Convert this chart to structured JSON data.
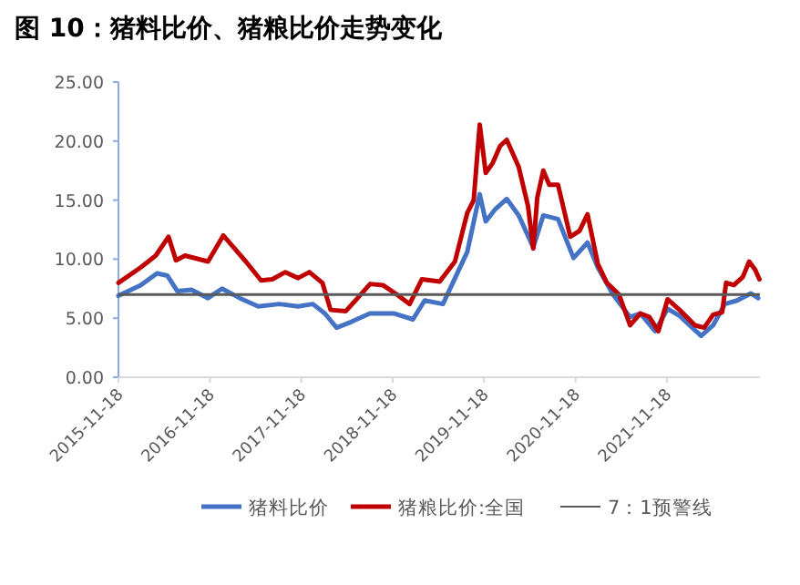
{
  "chart_data": {
    "type": "line",
    "title": "图 10：猪料比价、猪粮比价走势变化",
    "series": [
      {
        "name": "猪料比价",
        "color": "#4472c4",
        "x": [
          "2015-11-18",
          "2016-02-15",
          "2016-04-20",
          "2016-06-01",
          "2016-07-10",
          "2016-09-05",
          "2016-11-10",
          "2017-01-05",
          "2017-03-17",
          "2017-05-30",
          "2017-08-22",
          "2017-11-05",
          "2018-01-03",
          "2018-02-20",
          "2018-04-08",
          "2018-06-07",
          "2018-08-19",
          "2018-11-25",
          "2019-02-07",
          "2019-03-26",
          "2019-06-07",
          "2019-09-12",
          "2019-11-01",
          "2019-11-25",
          "2020-01-01",
          "2020-02-17",
          "2020-04-05",
          "2020-06-02",
          "2020-07-12",
          "2020-09-09",
          "2020-11-10",
          "2021-01-05",
          "2021-02-15",
          "2021-04-17",
          "2021-06-24",
          "2021-08-04",
          "2021-10-02",
          "2021-11-21",
          "2022-01-08",
          "2022-04-04",
          "2022-05-22",
          "2022-07-08",
          "2022-08-26",
          "2022-10-20",
          "2022-11-18"
        ],
        "values": [
          6.9,
          7.8,
          8.8,
          8.6,
          7.3,
          7.4,
          6.7,
          7.5,
          6.7,
          6.0,
          6.2,
          6.0,
          6.2,
          5.4,
          4.2,
          4.7,
          5.4,
          5.4,
          4.9,
          6.5,
          6.2,
          10.6,
          15.5,
          13.2,
          14.2,
          15.1,
          13.7,
          11.0,
          13.7,
          13.4,
          10.1,
          11.4,
          9.3,
          7.0,
          5.1,
          5.4,
          3.9,
          5.8,
          5.2,
          3.5,
          4.4,
          6.2,
          6.5,
          7.1,
          6.7
        ]
      },
      {
        "name": "猪粮比价:全国",
        "color": "#c00000",
        "x": [
          "2015-11-18",
          "2016-02-15",
          "2016-04-15",
          "2016-06-05",
          "2016-07-05",
          "2016-08-10",
          "2016-11-10",
          "2017-01-10",
          "2017-02-20",
          "2017-04-10",
          "2017-06-10",
          "2017-07-25",
          "2017-09-15",
          "2017-11-05",
          "2017-12-20",
          "2018-02-10",
          "2018-03-15",
          "2018-05-15",
          "2018-07-01",
          "2018-08-20",
          "2018-10-10",
          "2018-12-05",
          "2019-01-25",
          "2019-03-15",
          "2019-05-25",
          "2019-07-25",
          "2019-09-12",
          "2019-10-08",
          "2019-11-01",
          "2019-11-25",
          "2019-12-22",
          "2020-01-22",
          "2020-02-17",
          "2020-04-05",
          "2020-05-12",
          "2020-06-02",
          "2020-06-18",
          "2020-07-12",
          "2020-08-05",
          "2020-09-09",
          "2020-10-28",
          "2020-12-04",
          "2021-01-05",
          "2021-02-15",
          "2021-03-23",
          "2021-05-11",
          "2021-06-24",
          "2021-08-04",
          "2021-09-09",
          "2021-10-15",
          "2021-11-21",
          "2022-01-08",
          "2022-03-10",
          "2022-04-16",
          "2022-05-22",
          "2022-06-27",
          "2022-07-13",
          "2022-08-13",
          "2022-09-18",
          "2022-10-13",
          "2022-11-06",
          "2022-11-23"
        ],
        "values": [
          8.0,
          9.3,
          10.3,
          11.9,
          9.9,
          10.3,
          9.8,
          12.0,
          11.0,
          9.8,
          8.2,
          8.3,
          8.9,
          8.4,
          8.9,
          8.0,
          5.7,
          5.6,
          6.7,
          7.9,
          7.8,
          7.0,
          6.2,
          8.3,
          8.1,
          9.8,
          13.9,
          15.0,
          21.4,
          17.3,
          18.1,
          19.6,
          20.1,
          17.8,
          14.5,
          10.9,
          15.2,
          17.5,
          16.3,
          16.3,
          11.9,
          12.4,
          13.8,
          9.6,
          8.0,
          7.0,
          4.4,
          5.4,
          5.1,
          3.9,
          6.6,
          5.7,
          4.4,
          4.2,
          5.3,
          5.5,
          8.0,
          7.8,
          8.5,
          9.8,
          9.1,
          8.3
        ]
      }
    ],
    "ref_lines": [
      {
        "axis": "y",
        "value": 7,
        "label": "7：1预警线",
        "color": "#595959"
      }
    ],
    "xlim": [
      "2015-11-18",
      "2022-11-25"
    ],
    "xticks": [
      "2015-11-18",
      "2016-11-18",
      "2017-11-18",
      "2018-11-18",
      "2019-11-18",
      "2020-11-18",
      "2021-11-18"
    ],
    "ylim": [
      0,
      25
    ],
    "yticks": [
      {
        "value": 0,
        "label": "0.00"
      },
      {
        "value": 5,
        "label": "5.00"
      },
      {
        "value": 10,
        "label": "10.00"
      },
      {
        "value": 15,
        "label": "15.00"
      },
      {
        "value": 20,
        "label": "20.00"
      },
      {
        "value": 25,
        "label": "25.00"
      }
    ],
    "grid": false,
    "legend": "bottom"
  }
}
